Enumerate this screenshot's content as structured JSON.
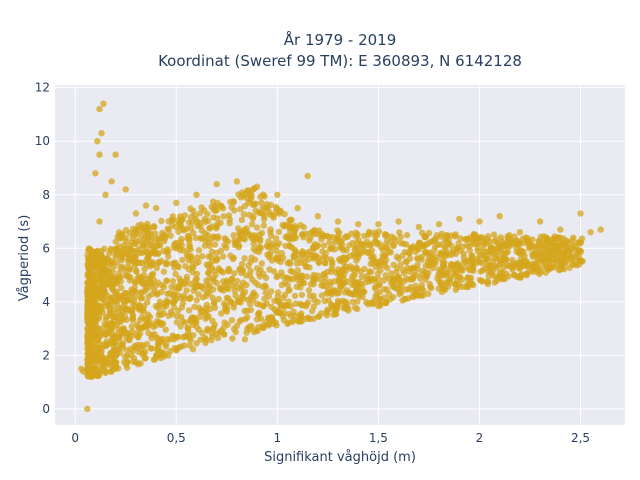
{
  "chart_data": {
    "type": "scatter",
    "title_lines": [
      "År 1979 - 2019",
      "Koordinat (Sweref 99 TM): E 360893, N 6142128"
    ],
    "xlabel": "Signifikant våghöjd (m)",
    "ylabel": "Vågperiod (s)",
    "xlim": [
      -0.1,
      2.72
    ],
    "ylim": [
      -0.6,
      12.1
    ],
    "x_ticks": [
      0,
      0.5,
      1,
      1.5,
      2,
      2.5
    ],
    "x_tick_labels": [
      "0",
      "0,5",
      "1",
      "1,5",
      "2",
      "2,5"
    ],
    "y_ticks": [
      0,
      2,
      4,
      6,
      8,
      10,
      12
    ],
    "y_tick_labels": [
      "0",
      "2",
      "4",
      "6",
      "8",
      "10",
      "12"
    ],
    "grid": true,
    "background": "#e9eaf2",
    "marker_color": "#d4a51c",
    "series": [
      {
        "values": [
          [
            0.06,
            0.0
          ],
          [
            0.03,
            1.5
          ],
          [
            0.04,
            1.4
          ],
          [
            0.08,
            1.2
          ],
          [
            0.1,
            1.25
          ],
          [
            0.12,
            1.3
          ],
          [
            0.15,
            1.35
          ],
          [
            0.2,
            1.5
          ],
          [
            0.3,
            1.75
          ],
          [
            0.4,
            2.0
          ],
          [
            0.5,
            2.2
          ],
          [
            0.6,
            2.45
          ],
          [
            0.7,
            2.8
          ],
          [
            0.8,
            3.1
          ],
          [
            0.9,
            3.35
          ],
          [
            1.0,
            3.6
          ],
          [
            1.2,
            4.0
          ],
          [
            1.4,
            4.4
          ],
          [
            1.6,
            4.8
          ],
          [
            1.8,
            5.2
          ],
          [
            2.0,
            5.5
          ],
          [
            2.2,
            5.8
          ],
          [
            2.4,
            6.05
          ],
          [
            2.5,
            6.2
          ],
          [
            0.1,
            5.5
          ],
          [
            0.12,
            7.0
          ],
          [
            0.15,
            8.0
          ],
          [
            0.1,
            8.8
          ],
          [
            0.12,
            9.5
          ],
          [
            0.13,
            10.3
          ],
          [
            0.12,
            11.2
          ],
          [
            0.14,
            11.4
          ],
          [
            0.11,
            10.0
          ],
          [
            0.18,
            8.5
          ],
          [
            0.2,
            9.5
          ],
          [
            0.25,
            8.2
          ],
          [
            0.3,
            7.3
          ],
          [
            0.4,
            7.5
          ],
          [
            0.5,
            7.7
          ],
          [
            0.6,
            8.0
          ],
          [
            0.7,
            8.4
          ],
          [
            0.8,
            8.5
          ],
          [
            0.9,
            8.3
          ],
          [
            1.0,
            8.0
          ],
          [
            1.1,
            7.5
          ],
          [
            1.15,
            8.7
          ],
          [
            1.2,
            7.2
          ],
          [
            1.3,
            7.0
          ],
          [
            1.4,
            6.9
          ],
          [
            1.5,
            6.9
          ],
          [
            1.6,
            7.0
          ],
          [
            1.7,
            6.8
          ],
          [
            1.8,
            6.9
          ],
          [
            1.9,
            7.1
          ],
          [
            2.0,
            7.0
          ],
          [
            2.1,
            7.2
          ],
          [
            2.2,
            6.6
          ],
          [
            2.3,
            7.0
          ],
          [
            2.4,
            6.7
          ],
          [
            2.5,
            7.3
          ],
          [
            2.55,
            6.6
          ],
          [
            2.6,
            6.7
          ],
          [
            0.84,
            2.6
          ],
          [
            0.5,
            6.2
          ],
          [
            0.7,
            6.8
          ],
          [
            0.35,
            7.6
          ]
        ]
      }
    ]
  }
}
